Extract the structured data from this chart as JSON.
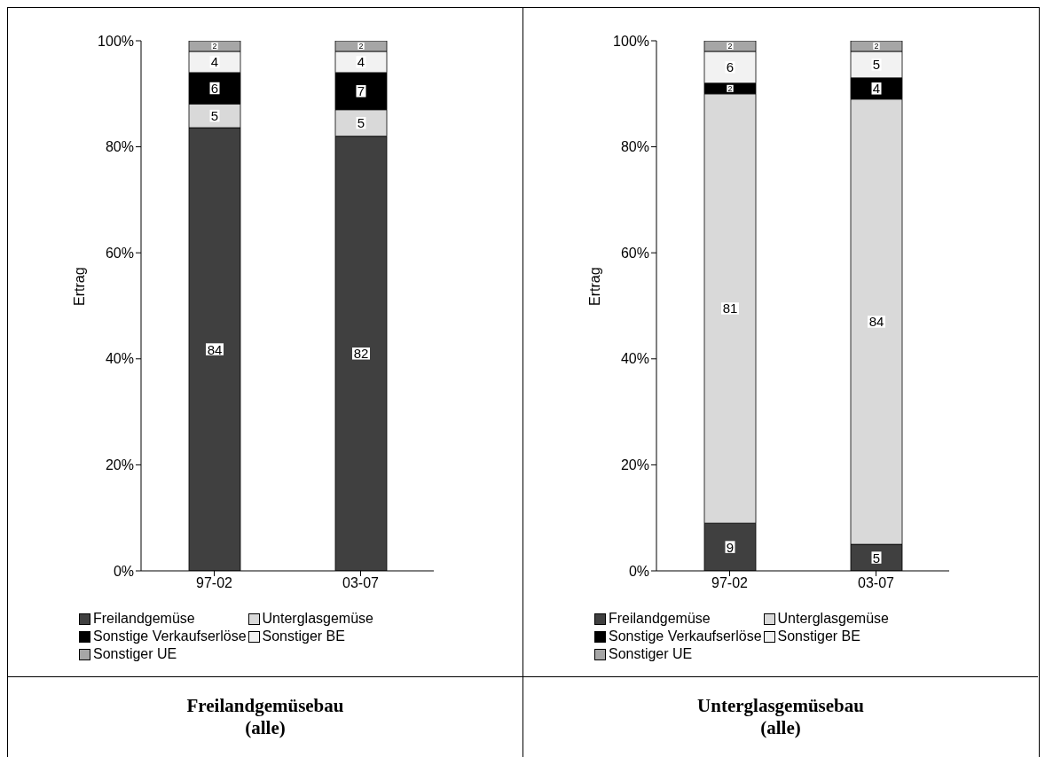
{
  "chart_data": [
    {
      "type": "bar",
      "title": "Freilandgemüsebau (alle)",
      "ylabel": "Ertrag",
      "categories": [
        "97-02",
        "03-07"
      ],
      "stacked": true,
      "legend": "bottom",
      "ylim": [
        0,
        100
      ],
      "yticks": [
        {
          "value": 0,
          "label": "0%"
        },
        {
          "value": 20,
          "label": "20%"
        },
        {
          "value": 40,
          "label": "40%"
        },
        {
          "value": 60,
          "label": "60%"
        },
        {
          "value": 80,
          "label": "80%"
        },
        {
          "value": 100,
          "label": "100%"
        }
      ],
      "series": [
        {
          "name": "Freilandgemüse",
          "color": "#404040",
          "values": [
            83.6,
            82
          ],
          "value_labels": [
            "84",
            "82"
          ]
        },
        {
          "name": "Unterglasgemüse",
          "color": "#d9d9d9",
          "values": [
            4.5,
            5
          ],
          "value_labels": [
            "5",
            "5"
          ]
        },
        {
          "name": "Sonstige Verkaufserlöse",
          "color": "#000000",
          "values": [
            5.9,
            7
          ],
          "value_labels": [
            "6",
            "7"
          ]
        },
        {
          "name": "Sonstiger BE",
          "color": "#f2f2f2",
          "values": [
            4,
            4
          ],
          "value_labels": [
            "4",
            "4"
          ]
        },
        {
          "name": "Sonstiger UE",
          "color": "#a6a6a6",
          "values": [
            2,
            2
          ],
          "value_labels": [
            "2",
            "2"
          ]
        }
      ]
    },
    {
      "type": "bar",
      "title": "Unterglasgemüsebau (alle)",
      "ylabel": "Ertrag",
      "categories": [
        "97-02",
        "03-07"
      ],
      "stacked": true,
      "legend": "bottom",
      "data_labels": true,
      "ylim": [
        0,
        100
      ],
      "yticks": [
        {
          "value": 0,
          "label": "0%"
        },
        {
          "value": 20,
          "label": "20%"
        },
        {
          "value": 40,
          "label": "40%"
        },
        {
          "value": 60,
          "label": "60%"
        },
        {
          "value": 80,
          "label": "80%"
        },
        {
          "value": 100,
          "label": "100%"
        }
      ],
      "series": [
        {
          "name": "Freilandgemüse",
          "color": "#404040",
          "values": [
            9,
            5
          ]
        },
        {
          "name": "Unterglasgemüse",
          "color": "#d9d9d9",
          "values": [
            81,
            84
          ]
        },
        {
          "name": "Sonstige Verkaufserlöse",
          "color": "#000000",
          "values": [
            2,
            4
          ]
        },
        {
          "name": "Sonstiger BE",
          "color": "#f2f2f2",
          "values": [
            6,
            5
          ]
        },
        {
          "name": "Sonstiger UE",
          "color": "#a6a6a6",
          "values": [
            2,
            2
          ]
        }
      ]
    }
  ]
}
